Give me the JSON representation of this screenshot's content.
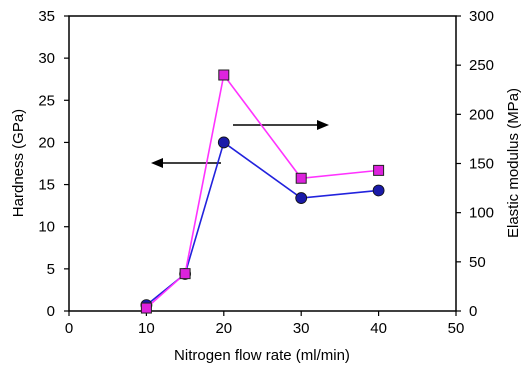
{
  "chart_data": {
    "type": "line",
    "title": "",
    "xlabel": "Nitrogen flow rate   (ml/min)",
    "ylabel": "Hardness (GPa)",
    "y2label": "Elastic modulus (MPa)",
    "xlim": [
      0,
      50
    ],
    "ylim": [
      0,
      35
    ],
    "y2lim": [
      0,
      300
    ],
    "xticks": [
      "0",
      "10",
      "20",
      "30",
      "40",
      "50"
    ],
    "yticks": [
      "0",
      "5",
      "10",
      "15",
      "20",
      "25",
      "30",
      "35"
    ],
    "y2ticks": [
      "0",
      "50",
      "100",
      "150",
      "200",
      "250",
      "300"
    ],
    "grid": false,
    "series": [
      {
        "axis": "left",
        "marker": "circle",
        "color": "#2222dd",
        "marker_color": "#1a1aa8",
        "x": [
          10,
          15,
          20,
          30,
          40
        ],
        "values": [
          0.7,
          4.4,
          20.0,
          13.4,
          14.3
        ]
      },
      {
        "axis": "right",
        "marker": "square",
        "color": "#ff33ff",
        "marker_color": "#dd22dd",
        "x": [
          10,
          15,
          20,
          30,
          40
        ],
        "values": [
          3,
          38,
          240,
          135,
          143
        ]
      }
    ],
    "annotations": [
      {
        "type": "arrow",
        "direction": "left",
        "meaning": "points to hardness axis"
      },
      {
        "type": "arrow",
        "direction": "right",
        "meaning": "points to elastic modulus axis"
      }
    ]
  }
}
